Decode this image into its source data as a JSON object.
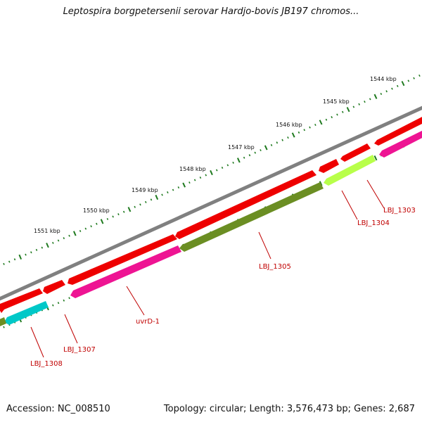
{
  "title": "Leptospira borgpetersenii serovar Hardjo-bovis JB197 chromos...",
  "footer": {
    "accession": "Accession: NC_008510",
    "summary": "Topology: circular; Length: 3,576,473 bp; Genes: 2,687"
  },
  "colors": {
    "backbone": "#808080",
    "forward_cds": "#ee0000",
    "gene_label": "#c00000",
    "tick": "#1f7a1f",
    "LBJ_1303": "#ee1493",
    "LBJ_1304": "#b8ff4a",
    "LBJ_1305": "#6b8e23",
    "uvrD-1": "#ee1493",
    "LBJ_1307": "#ee0000",
    "LBJ_1308": "#00c8c8"
  },
  "scale_labels": [
    "1544 kbp",
    "1545 kbp",
    "1546 kbp",
    "1547 kbp",
    "1548 kbp",
    "1549 kbp",
    "1550 kbp",
    "1551 kbp"
  ],
  "genes": [
    {
      "name": "LBJ_1303",
      "label": "LBJ_1303"
    },
    {
      "name": "LBJ_1304",
      "label": "LBJ_1304"
    },
    {
      "name": "LBJ_1305",
      "label": "LBJ_1305"
    },
    {
      "name": "uvrD-1",
      "label": "uvrD-1"
    },
    {
      "name": "LBJ_1307",
      "label": "LBJ_1307"
    },
    {
      "name": "LBJ_1308",
      "label": "LBJ_1308"
    }
  ]
}
